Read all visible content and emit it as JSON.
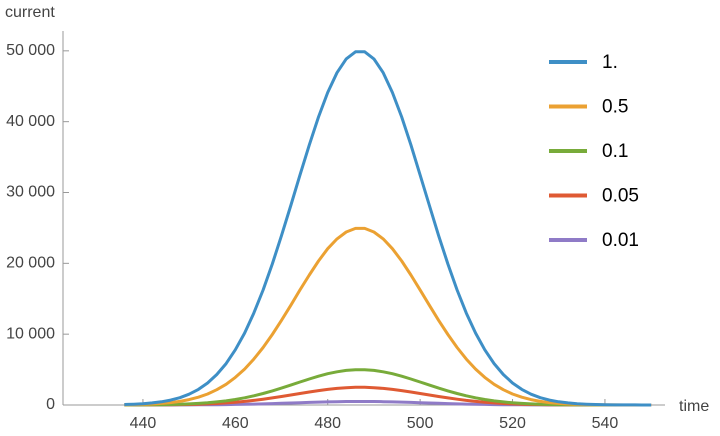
{
  "chart_data": {
    "type": "line",
    "x_label": "time",
    "y_label": "current",
    "x": [
      436,
      438,
      440,
      442,
      444,
      446,
      448,
      450,
      452,
      454,
      456,
      458,
      460,
      462,
      464,
      466,
      468,
      470,
      472,
      474,
      476,
      478,
      480,
      482,
      484,
      486,
      488,
      490,
      492,
      494,
      496,
      498,
      500,
      502,
      504,
      506,
      508,
      510,
      512,
      514,
      516,
      518,
      520,
      522,
      524,
      526,
      528,
      530,
      532,
      534,
      536,
      538,
      540,
      542,
      544,
      546,
      548,
      550
    ],
    "series": [
      {
        "name": "1.",
        "color": "#3e8fc6",
        "values": [
          70,
          110,
          180,
          290,
          450,
          690,
          1030,
          1520,
          2200,
          3110,
          4310,
          5850,
          7790,
          10150,
          12970,
          16230,
          19910,
          23920,
          28160,
          32490,
          36720,
          40660,
          44120,
          46910,
          48860,
          49870,
          49870,
          48860,
          46910,
          44120,
          40660,
          36720,
          32490,
          28160,
          23920,
          19910,
          16230,
          12970,
          10150,
          7790,
          5850,
          4310,
          3110,
          2200,
          1520,
          1030,
          690,
          450,
          290,
          180,
          110,
          70,
          40,
          20,
          10,
          10,
          0,
          0
        ]
      },
      {
        "name": "0.5",
        "color": "#eba132",
        "values": [
          35,
          55,
          90,
          145,
          225,
          345,
          515,
          760,
          1100,
          1555,
          2155,
          2925,
          3895,
          5075,
          6485,
          8115,
          9955,
          11960,
          14080,
          16245,
          18360,
          20330,
          22060,
          23455,
          24430,
          24935,
          24935,
          24430,
          23455,
          22060,
          20330,
          18360,
          16245,
          14080,
          11960,
          9955,
          8115,
          6485,
          5075,
          3895,
          2925,
          2155,
          1555,
          1100,
          760,
          515,
          345,
          225,
          145,
          90,
          55,
          35,
          20,
          10,
          5,
          5,
          0,
          0
        ]
      },
      {
        "name": "0.1",
        "color": "#78ab3a",
        "values": [
          7,
          11,
          18,
          29,
          45,
          69,
          103,
          152,
          220,
          311,
          431,
          585,
          779,
          1015,
          1297,
          1623,
          1991,
          2392,
          2816,
          3249,
          3672,
          4066,
          4412,
          4691,
          4886,
          4987,
          4987,
          4886,
          4691,
          4412,
          4066,
          3672,
          3249,
          2816,
          2392,
          1991,
          1623,
          1297,
          1015,
          779,
          585,
          431,
          311,
          220,
          152,
          103,
          69,
          45,
          29,
          18,
          11,
          7,
          4,
          2,
          1,
          1,
          0,
          0
        ]
      },
      {
        "name": "0.05",
        "color": "#df5a33",
        "values": [
          4,
          6,
          9,
          15,
          23,
          35,
          52,
          76,
          110,
          156,
          216,
          293,
          390,
          508,
          649,
          812,
          996,
          1196,
          1408,
          1625,
          1836,
          2033,
          2206,
          2346,
          2443,
          2494,
          2494,
          2443,
          2346,
          2206,
          2033,
          1836,
          1625,
          1408,
          1196,
          996,
          812,
          649,
          508,
          390,
          293,
          216,
          156,
          110,
          76,
          52,
          35,
          23,
          15,
          9,
          6,
          4,
          2,
          1,
          1,
          1,
          0,
          0
        ]
      },
      {
        "name": "0.01",
        "color": "#8f7bc7",
        "values": [
          1,
          1,
          2,
          3,
          5,
          7,
          10,
          15,
          22,
          31,
          43,
          59,
          78,
          102,
          130,
          162,
          199,
          239,
          282,
          325,
          367,
          407,
          441,
          469,
          489,
          499,
          499,
          489,
          469,
          441,
          407,
          367,
          325,
          282,
          239,
          199,
          162,
          130,
          102,
          78,
          59,
          43,
          31,
          22,
          15,
          10,
          7,
          5,
          3,
          2,
          1,
          1,
          0,
          0,
          0,
          0,
          0,
          0
        ]
      }
    ],
    "xlim": [
      422.7,
      553
    ],
    "ylim": [
      0,
      52800
    ],
    "xticks": [
      440,
      460,
      480,
      500,
      520,
      540
    ],
    "yticks": [
      0,
      {
        "value": 10000,
        "label": "10 000"
      },
      {
        "value": 20000,
        "label": "20 000"
      },
      {
        "value": 30000,
        "label": "30 000"
      },
      {
        "value": 40000,
        "label": "40 000"
      },
      {
        "value": 50000,
        "label": "50 000"
      }
    ],
    "legend": "right"
  }
}
